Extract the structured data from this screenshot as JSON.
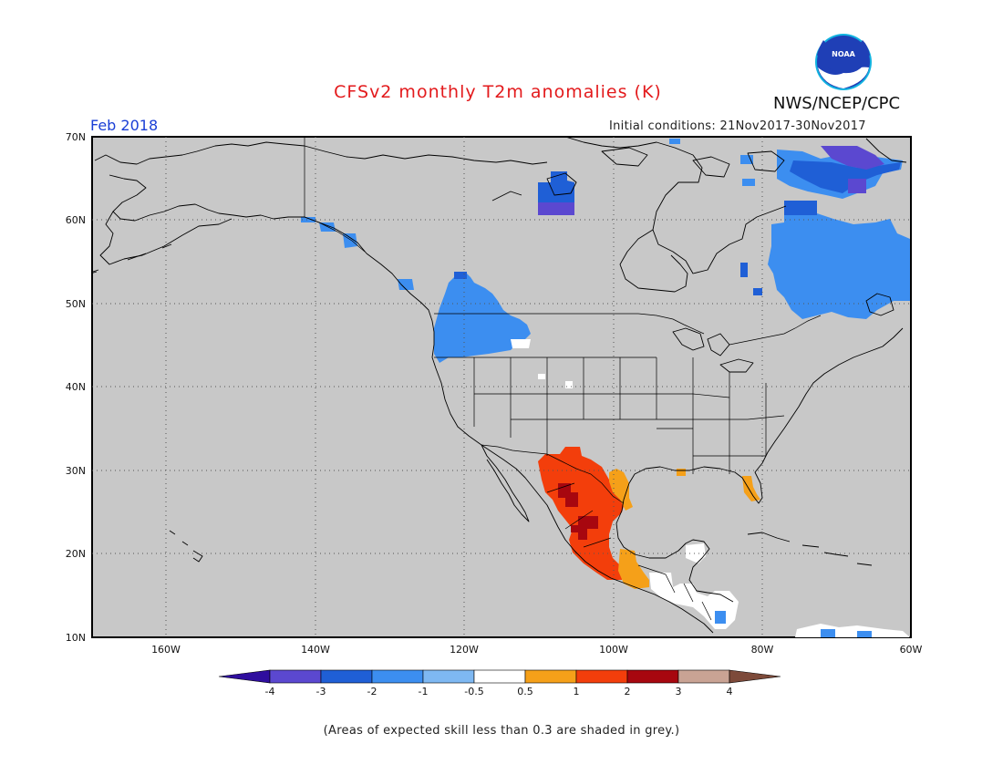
{
  "title": "CFSv2 monthly T2m anomalies (K)",
  "agency": "NWS/NCEP/CPC",
  "logo_text": "NOAA",
  "valid_month": "Feb 2018",
  "initial_conditions": "Initial conditions: 21Nov2017-30Nov2017",
  "footnote": "(Areas of expected skill less than 0.3 are shaded in grey.)",
  "map": {
    "region": "North America",
    "lat_range": [
      10,
      70
    ],
    "lon_range": [
      -170,
      -60
    ],
    "lat_labels": [
      "70N",
      "60N",
      "50N",
      "40N",
      "30N",
      "20N",
      "10N"
    ],
    "lon_labels": [
      "160W",
      "140W",
      "120W",
      "100W",
      "80W",
      "60W"
    ],
    "background_color": "#c8c8c8",
    "no_skill_note": "grey"
  },
  "colorbar": {
    "labels": [
      "-4",
      "-3",
      "-2",
      "-1",
      "-0.5",
      "0.5",
      "1",
      "2",
      "3",
      "4"
    ],
    "colors": [
      "#2f0e9e",
      "#5b48d0",
      "#1f5fd6",
      "#3c8ef0",
      "#7eb8f2",
      "#ffffff",
      "#f5a019",
      "#f33e0b",
      "#a7070f",
      "#c9a394",
      "#7d4a3a"
    ]
  },
  "anomaly_regions": [
    {
      "name": "mexico-warm",
      "category": "1 to 2",
      "color": "#f33e0b"
    },
    {
      "name": "mexico-very-warm",
      "category": "2 to 3",
      "color": "#a7070f"
    },
    {
      "name": "texas-gulf-warm",
      "category": "0.5 to 1",
      "color": "#f5a019"
    },
    {
      "name": "florida-warm",
      "category": "0.5 to 1",
      "color": "#f5a019"
    },
    {
      "name": "pacific-northwest-cold",
      "category": "-2 to -1",
      "color": "#3c8ef0"
    },
    {
      "name": "quebec-labrador-cold",
      "category": "-2 to -1",
      "color": "#3c8ef0"
    },
    {
      "name": "baffin-cold",
      "category": "-4 to -3",
      "color": "#5b48d0"
    },
    {
      "name": "nunavut-cold",
      "category": "-3 to -2",
      "color": "#1f5fd6"
    }
  ]
}
